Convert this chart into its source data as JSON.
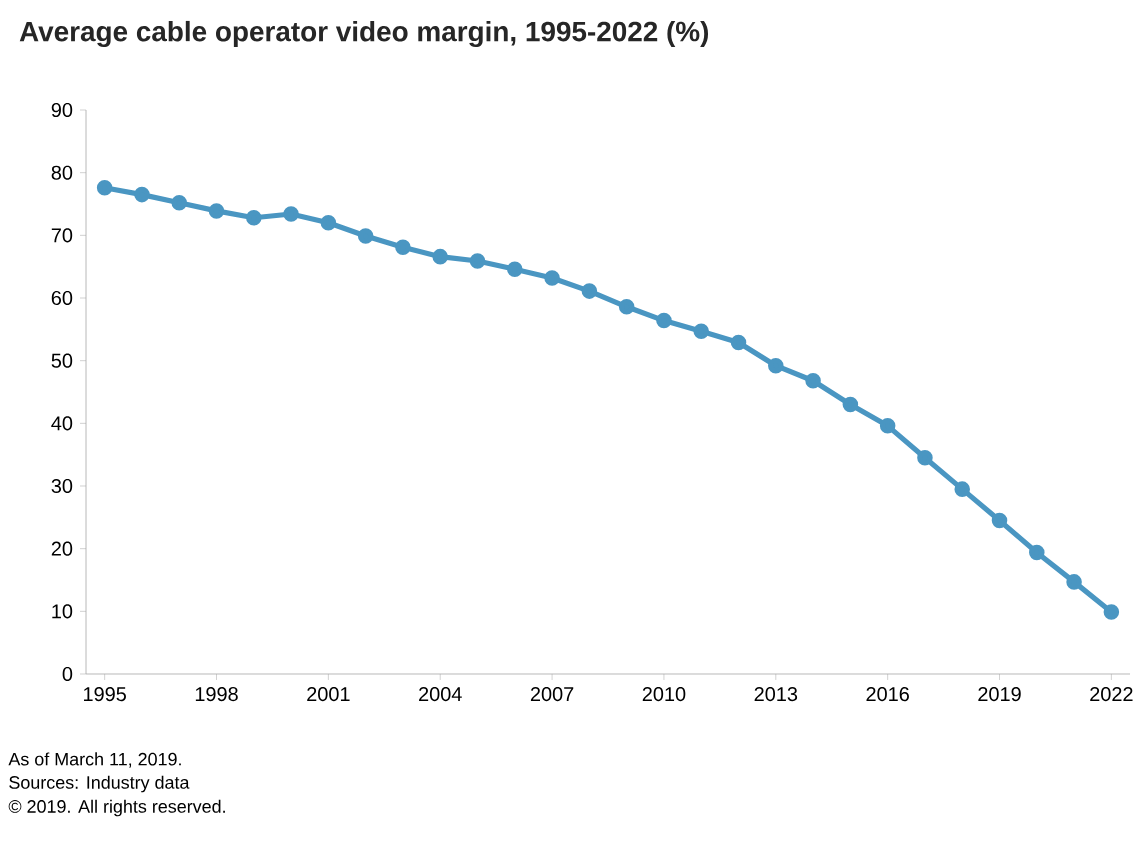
{
  "chart_data": {
    "type": "line",
    "title": "Average cable operator video margin, 1995-2022 (%)",
    "categories": [
      "1995",
      null,
      null,
      "1998",
      null,
      null,
      "2001",
      null,
      null,
      "2004",
      null,
      null,
      "2007",
      null,
      null,
      "2010",
      null,
      null,
      "2013",
      null,
      null,
      "2016",
      null,
      null,
      "2019",
      null,
      null,
      "2022"
    ],
    "series": [
      {
        "color": "#4a96c2",
        "values": [
          77.6,
          76.5,
          75.2,
          73.9,
          72.8,
          73.4,
          72.0,
          69.9,
          68.1,
          66.6,
          65.9,
          64.6,
          63.2,
          61.1,
          58.6,
          56.4,
          54.7,
          52.9,
          49.2,
          46.8,
          43.0,
          39.6,
          34.5,
          29.5,
          24.5,
          19.4,
          14.7,
          9.9
        ]
      }
    ],
    "ylim": [
      0,
      90
    ],
    "yticks": [
      0,
      10,
      20,
      30,
      40,
      50,
      60,
      70,
      80,
      90
    ],
    "marker": "circle",
    "line_style": "solid",
    "grid": false,
    "annotations": [
      "As of March 11, 2019.",
      "Sources: Industry data",
      "© 2019. All rights reserved."
    ]
  }
}
